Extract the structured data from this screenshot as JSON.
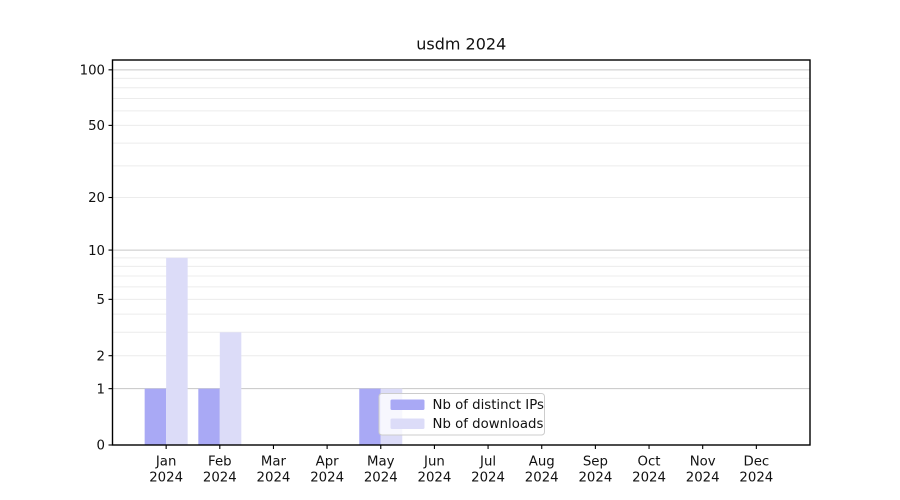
{
  "chart_data": {
    "type": "bar",
    "title": "usdm 2024",
    "x": {
      "months": [
        "Jan",
        "Feb",
        "Mar",
        "Apr",
        "May",
        "Jun",
        "Jul",
        "Aug",
        "Sep",
        "Oct",
        "Nov",
        "Dec"
      ],
      "year": "2024"
    },
    "series": [
      {
        "name": "Nb of distinct IPs",
        "color": "#a9a9f5",
        "values": [
          1,
          1,
          0,
          0,
          1,
          0,
          0,
          0,
          0,
          0,
          0,
          0
        ]
      },
      {
        "name": "Nb of downloads",
        "color": "#dcdcf8",
        "values": [
          9,
          3,
          0,
          0,
          1,
          0,
          0,
          0,
          0,
          0,
          0,
          0
        ]
      }
    ],
    "y_axis": {
      "scale": "log10(1+v)",
      "tick_labels": [
        0,
        1,
        2,
        5,
        10,
        20,
        50,
        100
      ],
      "major_grid": [
        1,
        10,
        100
      ],
      "minor_grid": [
        2,
        3,
        4,
        5,
        6,
        7,
        8,
        9,
        20,
        30,
        40,
        50,
        60,
        70,
        80,
        90
      ],
      "ylim": [
        0,
        113
      ]
    },
    "legend": {
      "location": "inside-plot lower-left-of-center",
      "entries": [
        "Nb of distinct IPs",
        "Nb of downloads"
      ]
    },
    "grid": true
  },
  "colors": {
    "bar_distinct_ips": "#a9a9f5",
    "bar_downloads": "#dcdcf8",
    "major_grid": "#c6c6c6",
    "minor_grid": "#ececec",
    "axis": "#000000",
    "tick_text": "#1a1a1a",
    "legend_border": "#cccccc",
    "legend_bg": "rgba(255,255,255,0.78)",
    "background": "#ffffff"
  }
}
